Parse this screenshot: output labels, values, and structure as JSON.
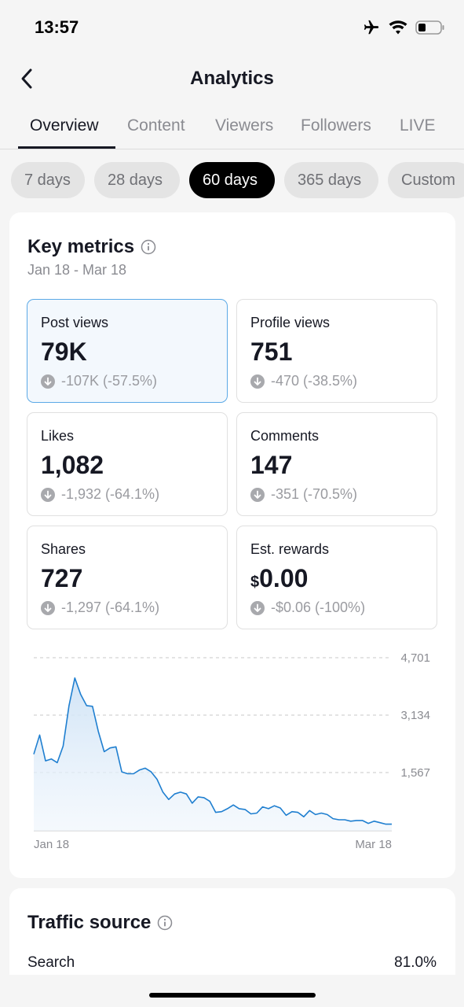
{
  "status_bar": {
    "time": "13:57",
    "icons": [
      "airplane-icon",
      "wifi-icon",
      "battery-icon"
    ]
  },
  "header": {
    "title": "Analytics",
    "back_icon": "chevron-left-icon"
  },
  "tabs": [
    {
      "label": "Overview",
      "active": true
    },
    {
      "label": "Content",
      "active": false
    },
    {
      "label": "Viewers",
      "active": false
    },
    {
      "label": "Followers",
      "active": false
    },
    {
      "label": "LIVE",
      "active": false
    }
  ],
  "ranges": [
    {
      "label": "7 days",
      "active": false
    },
    {
      "label": "28 days",
      "active": false
    },
    {
      "label": "60 days",
      "active": true
    },
    {
      "label": "365 days",
      "active": false
    },
    {
      "label": "Custom",
      "active": false
    }
  ],
  "key_metrics": {
    "title": "Key metrics",
    "date_range": "Jan 18 - Mar 18",
    "items": [
      {
        "label": "Post views",
        "value": "79K",
        "change": "-107K (-57.5%)",
        "active": true
      },
      {
        "label": "Profile views",
        "value": "751",
        "change": "-470 (-38.5%)",
        "active": false
      },
      {
        "label": "Likes",
        "value": "1,082",
        "change": "-1,932 (-64.1%)",
        "active": false
      },
      {
        "label": "Comments",
        "value": "147",
        "change": "-351 (-70.5%)",
        "active": false
      },
      {
        "label": "Shares",
        "value": "727",
        "change": "-1,297 (-64.1%)",
        "active": false
      },
      {
        "label": "Est. rewards",
        "currency": "$",
        "value": "0.00",
        "change": "-$0.06 (-100%)",
        "active": false
      }
    ]
  },
  "chart": {
    "y_ticks": [
      "4,701",
      "3,134",
      "1,567"
    ],
    "x_labels": [
      "Jan 18",
      "Mar 18"
    ],
    "ymax": 4701,
    "line_color": "#1f7fd0",
    "values": [
      2080,
      2600,
      1900,
      1950,
      1850,
      2300,
      3400,
      4150,
      3700,
      3400,
      3380,
      2700,
      2150,
      2250,
      2280,
      1600,
      1550,
      1550,
      1650,
      1700,
      1600,
      1400,
      1050,
      850,
      1000,
      1050,
      1000,
      750,
      920,
      900,
      800,
      500,
      520,
      600,
      700,
      600,
      580,
      460,
      480,
      650,
      600,
      680,
      620,
      420,
      520,
      500,
      380,
      550,
      440,
      480,
      440,
      330,
      300,
      300,
      260,
      280,
      280,
      200,
      260,
      220,
      180,
      180
    ]
  },
  "traffic_source": {
    "title": "Traffic source",
    "rows": [
      {
        "label": "Search",
        "value": "81.0%"
      }
    ]
  }
}
